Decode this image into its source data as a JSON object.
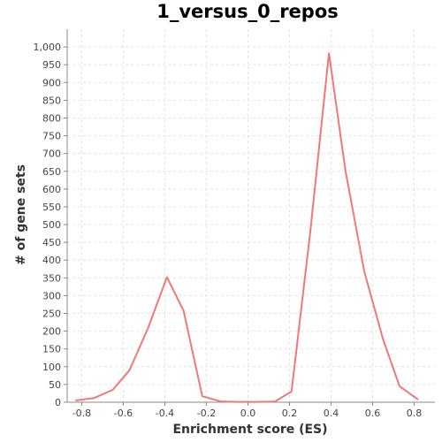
{
  "chart_data": {
    "type": "line",
    "title": "1_versus_0_repos",
    "xlabel": "Enrichment score (ES)",
    "ylabel": "# of gene sets",
    "xlim": [
      -0.87,
      0.9
    ],
    "ylim": [
      0,
      1050
    ],
    "x_ticks": [
      "-0.8",
      "-0.6",
      "-0.4",
      "-0.2",
      "0.0",
      "0.2",
      "0.4",
      "0.6",
      "0.8"
    ],
    "x_tick_values": [
      -0.8,
      -0.6,
      -0.4,
      -0.2,
      0.0,
      0.2,
      0.4,
      0.6,
      0.8
    ],
    "y_ticks": [
      "0",
      "50",
      "100",
      "150",
      "200",
      "250",
      "300",
      "350",
      "400",
      "450",
      "500",
      "550",
      "600",
      "650",
      "700",
      "750",
      "800",
      "850",
      "900",
      "950",
      "1,000"
    ],
    "y_tick_values": [
      0,
      50,
      100,
      150,
      200,
      250,
      300,
      350,
      400,
      450,
      500,
      550,
      600,
      650,
      700,
      750,
      800,
      850,
      900,
      950,
      1000
    ],
    "grid": true,
    "series": [
      {
        "color": "#f07878",
        "x": [
          -0.83,
          -0.74,
          -0.65,
          -0.57,
          -0.48,
          -0.39,
          -0.31,
          -0.22,
          -0.13,
          -0.05,
          0.04,
          0.13,
          0.21,
          0.3,
          0.39,
          0.47,
          0.56,
          0.65,
          0.73,
          0.82
        ],
        "y": [
          5,
          12,
          35,
          90,
          210,
          352,
          258,
          17,
          2,
          1,
          1,
          2,
          30,
          480,
          982,
          650,
          368,
          178,
          45,
          7
        ]
      }
    ]
  }
}
